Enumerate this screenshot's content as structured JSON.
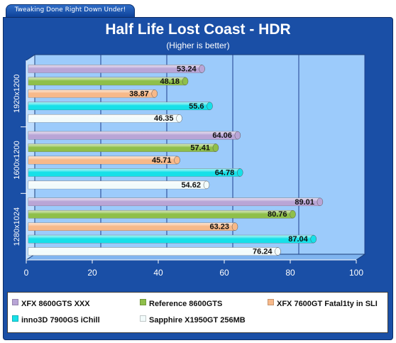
{
  "header": {
    "tab_text": "Tweaking Done Right Down Under!"
  },
  "chart_data": {
    "type": "bar",
    "orientation": "horizontal",
    "title": "Half Life Lost Coast - HDR",
    "subtitle": "(Higher is better)",
    "categories": [
      "1920x1200",
      "1600x1200",
      "1280x1024"
    ],
    "series": [
      {
        "name": "XFX 8600GTS XXX",
        "color": "#b9a5d6",
        "values": [
          53.24,
          64.06,
          89.01
        ]
      },
      {
        "name": "Reference 8600GTS",
        "color": "#8fbf4a",
        "values": [
          48.18,
          57.41,
          80.76
        ]
      },
      {
        "name": "XFX 7600GT Fatal1ty in SLI",
        "color": "#f7b98a",
        "values": [
          38.87,
          45.71,
          63.23
        ]
      },
      {
        "name": "inno3D 7900GS iChill",
        "color": "#17e0e8",
        "values": [
          55.6,
          64.78,
          87.04
        ]
      },
      {
        "name": "Sapphire X1950GT 256MB",
        "color": "#f2fbfb",
        "values": [
          46.35,
          54.62,
          76.24
        ]
      }
    ],
    "xlim": [
      0,
      100
    ],
    "xticks": [
      0,
      20,
      40,
      60,
      80,
      100
    ],
    "grid": true,
    "legend_position": "bottom"
  }
}
